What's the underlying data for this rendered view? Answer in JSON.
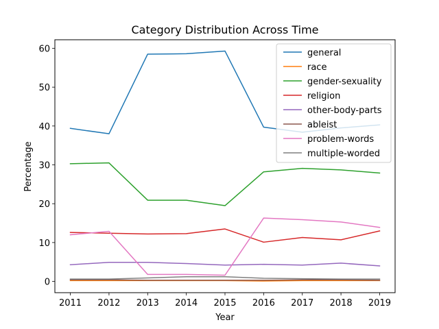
{
  "chart_data": {
    "type": "line",
    "title": "Category Distribution Across Time",
    "xlabel": "Year",
    "ylabel": "Percentage",
    "x": [
      2011,
      2012,
      2013,
      2014,
      2015,
      2016,
      2017,
      2018,
      2019
    ],
    "xlim": [
      2010.6,
      2019.4
    ],
    "ylim": [
      -2.9,
      62.2
    ],
    "yticks": [
      0,
      10,
      20,
      30,
      40,
      50,
      60
    ],
    "grid": false,
    "legend_position": "top-right",
    "series": [
      {
        "name": "general",
        "color": "#1f77b4",
        "values": [
          39.4,
          38.0,
          58.5,
          58.6,
          59.3,
          39.7,
          38.4,
          39.5,
          40.3
        ]
      },
      {
        "name": "race",
        "color": "#ff7f0e",
        "values": [
          0.2,
          0.2,
          0.2,
          0.2,
          0.2,
          0.1,
          0.2,
          0.2,
          0.2
        ]
      },
      {
        "name": "gender-sexuality",
        "color": "#2ca02c",
        "values": [
          30.3,
          30.5,
          20.9,
          20.9,
          19.5,
          28.2,
          29.1,
          28.7,
          27.9
        ]
      },
      {
        "name": "religion",
        "color": "#d62728",
        "values": [
          12.6,
          12.4,
          12.2,
          12.3,
          13.5,
          10.1,
          11.3,
          10.7,
          13.0
        ]
      },
      {
        "name": "other-body-parts",
        "color": "#9467bd",
        "values": [
          4.3,
          4.9,
          4.9,
          4.6,
          4.2,
          4.4,
          4.2,
          4.7,
          4.0
        ]
      },
      {
        "name": "ableist",
        "color": "#8c564b",
        "values": [
          0.4,
          0.4,
          0.3,
          0.3,
          0.3,
          0.3,
          0.4,
          0.4,
          0.3
        ]
      },
      {
        "name": "problem-words",
        "color": "#e377c2",
        "values": [
          12.0,
          12.9,
          1.8,
          1.8,
          1.6,
          16.3,
          15.9,
          15.3,
          13.9
        ]
      },
      {
        "name": "multiple-worded",
        "color": "#7f7f7f",
        "values": [
          0.6,
          0.6,
          0.9,
          1.2,
          1.2,
          0.8,
          0.7,
          0.6,
          0.6
        ]
      }
    ]
  }
}
